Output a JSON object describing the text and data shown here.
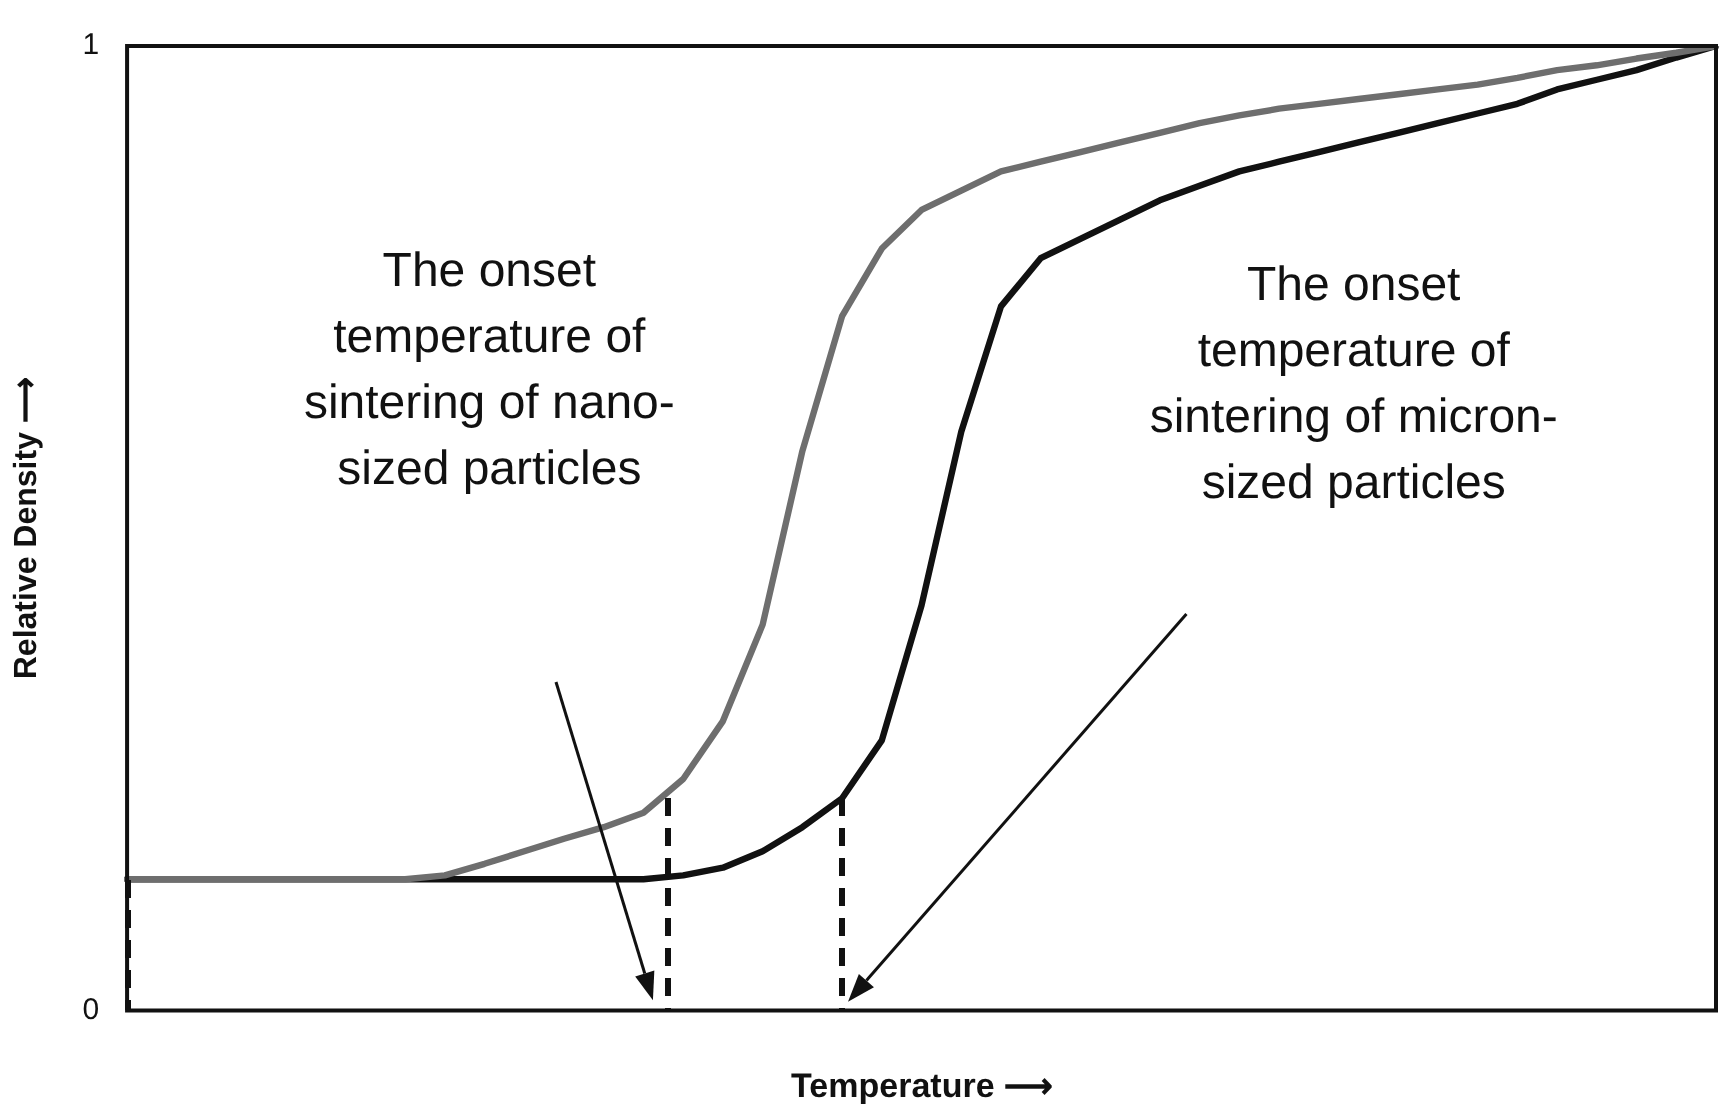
{
  "chart_data": {
    "type": "line",
    "xlabel": "Temperature ⟶",
    "ylabel": "Relative Density ⟶",
    "categories": [
      null,
      null,
      null,
      null,
      null,
      null,
      null,
      null,
      null,
      null,
      null,
      null,
      null,
      null,
      null,
      null,
      null,
      null,
      null,
      null,
      null,
      null,
      null,
      null,
      null,
      null,
      null,
      null,
      null,
      null,
      null,
      null,
      null,
      null,
      null,
      null,
      null,
      null,
      null,
      null,
      null
    ],
    "ylim": [
      0,
      1
    ],
    "yticks": [
      0,
      1
    ],
    "legend": false,
    "marker": "none",
    "series": [
      {
        "color": "#6e6e6e",
        "values": [
          0.136,
          0.136,
          0.136,
          0.136,
          0.136,
          0.136,
          0.136,
          0.136,
          0.14,
          0.152,
          0.165,
          0.178,
          0.19,
          0.205,
          0.24,
          0.3,
          0.4,
          0.58,
          0.72,
          0.79,
          0.83,
          0.85,
          0.87,
          0.88,
          0.89,
          0.9,
          0.91,
          0.92,
          0.928,
          0.935,
          0.94,
          0.945,
          0.95,
          0.955,
          0.96,
          0.967,
          0.975,
          0.98,
          0.987,
          0.993,
          1
        ]
      },
      {
        "color": "#111111",
        "values": [
          0.136,
          0.136,
          0.136,
          0.136,
          0.136,
          0.136,
          0.136,
          0.136,
          0.136,
          0.136,
          0.136,
          0.136,
          0.136,
          0.136,
          0.14,
          0.148,
          0.165,
          0.19,
          0.22,
          0.28,
          0.42,
          0.6,
          0.73,
          0.78,
          0.8,
          0.82,
          0.84,
          0.855,
          0.87,
          0.88,
          0.89,
          0.9,
          0.91,
          0.92,
          0.93,
          0.94,
          0.955,
          0.965,
          0.975,
          0.988,
          1
        ]
      }
    ],
    "annotations": [
      "The onset temperature of sintering of nano-sized particles",
      "The onset temperature of sintering of micron-sized particles"
    ]
  }
}
